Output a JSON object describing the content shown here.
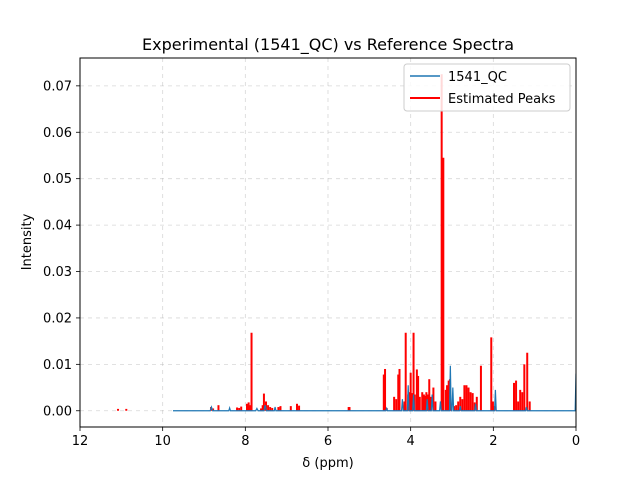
{
  "chart_data": {
    "type": "line",
    "title": "Experimental (1541_QC) vs Reference Spectra",
    "xlabel": "δ (ppm)",
    "ylabel": "Intensity",
    "xlim": [
      12,
      0
    ],
    "ylim": [
      -0.0035,
      0.076
    ],
    "x_inverted": true,
    "grid": true,
    "legend": "top-right",
    "x_ticks": [
      {
        "value": 12,
        "label": "12"
      },
      {
        "value": 10,
        "label": "10"
      },
      {
        "value": 8,
        "label": "8"
      },
      {
        "value": 6,
        "label": "6"
      },
      {
        "value": 4,
        "label": "4"
      },
      {
        "value": 2,
        "label": "2"
      },
      {
        "value": 0,
        "label": "0"
      }
    ],
    "y_ticks": [
      {
        "value": 0.0,
        "label": "0.00"
      },
      {
        "value": 0.01,
        "label": "0.01"
      },
      {
        "value": 0.02,
        "label": "0.02"
      },
      {
        "value": 0.03,
        "label": "0.03"
      },
      {
        "value": 0.04,
        "label": "0.04"
      },
      {
        "value": 0.05,
        "label": "0.05"
      },
      {
        "value": 0.06,
        "label": "0.06"
      },
      {
        "value": 0.07,
        "label": "0.07"
      }
    ],
    "series": [
      {
        "name": "1541_QC",
        "kind": "line",
        "color": "#1f77b4",
        "points": [
          [
            9.75,
            0.0
          ],
          [
            8.85,
            0.0
          ],
          [
            8.82,
            0.0008
          ],
          [
            8.79,
            0.0
          ],
          [
            8.4,
            0.0
          ],
          [
            8.38,
            0.0006
          ],
          [
            8.36,
            0.0
          ],
          [
            7.75,
            0.0
          ],
          [
            7.72,
            0.0005
          ],
          [
            7.69,
            0.0
          ],
          [
            7.55,
            0.0
          ],
          [
            7.52,
            0.0012
          ],
          [
            7.49,
            0.0
          ],
          [
            7.3,
            0.0
          ],
          [
            7.28,
            0.0008
          ],
          [
            7.26,
            0.0
          ],
          [
            4.6,
            0.0
          ],
          [
            4.58,
            0.0005
          ],
          [
            4.56,
            0.0
          ],
          [
            4.22,
            0.0
          ],
          [
            4.2,
            0.0025
          ],
          [
            4.18,
            0.0
          ],
          [
            4.08,
            0.0
          ],
          [
            4.06,
            0.0055
          ],
          [
            4.04,
            0.0
          ],
          [
            3.95,
            0.0
          ],
          [
            3.93,
            0.0035
          ],
          [
            3.91,
            0.0
          ],
          [
            3.62,
            0.0
          ],
          [
            3.6,
            0.0025
          ],
          [
            3.58,
            0.0
          ],
          [
            3.5,
            0.0
          ],
          [
            3.48,
            0.0035
          ],
          [
            3.46,
            0.0
          ],
          [
            3.3,
            0.0
          ],
          [
            3.28,
            0.002
          ],
          [
            3.26,
            0.0
          ],
          [
            3.06,
            0.0
          ],
          [
            3.04,
            0.0097
          ],
          [
            3.02,
            0.0
          ],
          [
            3.0,
            0.0
          ],
          [
            2.98,
            0.005
          ],
          [
            2.96,
            0.0
          ],
          [
            2.82,
            0.0
          ],
          [
            2.8,
            0.001
          ],
          [
            2.78,
            0.0
          ],
          [
            2.45,
            0.0
          ],
          [
            2.43,
            0.0015
          ],
          [
            2.41,
            0.0
          ],
          [
            1.97,
            0.0
          ],
          [
            1.95,
            0.0045
          ],
          [
            1.93,
            0.0
          ],
          [
            1.22,
            0.0
          ],
          [
            1.2,
            0.0008
          ],
          [
            1.18,
            0.0
          ],
          [
            0.02,
            0.0
          ],
          [
            0.0,
            0.008
          ]
        ]
      },
      {
        "name": "Estimated Peaks",
        "kind": "sticks",
        "color": "#ff0000",
        "peaks": [
          [
            11.08,
            0.0004
          ],
          [
            10.88,
            0.0004
          ],
          [
            8.83,
            0.0008
          ],
          [
            8.78,
            0.0005
          ],
          [
            8.65,
            0.0012
          ],
          [
            8.2,
            0.0007
          ],
          [
            8.15,
            0.0006
          ],
          [
            8.1,
            0.0009
          ],
          [
            7.96,
            0.0015
          ],
          [
            7.92,
            0.0018
          ],
          [
            7.88,
            0.0012
          ],
          [
            7.85,
            0.0168
          ],
          [
            7.62,
            0.0005
          ],
          [
            7.58,
            0.0012
          ],
          [
            7.55,
            0.0037
          ],
          [
            7.5,
            0.002
          ],
          [
            7.45,
            0.0012
          ],
          [
            7.4,
            0.0008
          ],
          [
            7.35,
            0.0006
          ],
          [
            7.2,
            0.0008
          ],
          [
            7.15,
            0.001
          ],
          [
            6.9,
            0.001
          ],
          [
            6.75,
            0.0015
          ],
          [
            6.7,
            0.0011
          ],
          [
            5.5,
            0.0008
          ],
          [
            5.48,
            0.0008
          ],
          [
            4.65,
            0.0078
          ],
          [
            4.62,
            0.009
          ],
          [
            4.58,
            0.0006
          ],
          [
            4.4,
            0.003
          ],
          [
            4.35,
            0.0025
          ],
          [
            4.3,
            0.0078
          ],
          [
            4.27,
            0.009
          ],
          [
            4.15,
            0.002
          ],
          [
            4.12,
            0.0168
          ],
          [
            4.06,
            0.0035
          ],
          [
            4.03,
            0.004
          ],
          [
            4.0,
            0.0082
          ],
          [
            3.97,
            0.0038
          ],
          [
            3.93,
            0.0168
          ],
          [
            3.9,
            0.0035
          ],
          [
            3.85,
            0.0089
          ],
          [
            3.82,
            0.0075
          ],
          [
            3.78,
            0.003
          ],
          [
            3.72,
            0.004
          ],
          [
            3.68,
            0.0035
          ],
          [
            3.65,
            0.0032
          ],
          [
            3.62,
            0.004
          ],
          [
            3.58,
            0.0035
          ],
          [
            3.55,
            0.0068
          ],
          [
            3.52,
            0.003
          ],
          [
            3.45,
            0.005
          ],
          [
            3.4,
            0.002
          ],
          [
            3.25,
            0.0725
          ],
          [
            3.21,
            0.0545
          ],
          [
            3.15,
            0.0045
          ],
          [
            3.12,
            0.0055
          ],
          [
            3.08,
            0.0065
          ],
          [
            3.05,
            0.0068
          ],
          [
            2.95,
            0.001
          ],
          [
            2.9,
            0.0012
          ],
          [
            2.85,
            0.002
          ],
          [
            2.8,
            0.003
          ],
          [
            2.75,
            0.0025
          ],
          [
            2.7,
            0.0055
          ],
          [
            2.65,
            0.0055
          ],
          [
            2.6,
            0.005
          ],
          [
            2.55,
            0.004
          ],
          [
            2.5,
            0.0038
          ],
          [
            2.45,
            0.0018
          ],
          [
            2.4,
            0.003
          ],
          [
            2.3,
            0.0097
          ],
          [
            2.05,
            0.0158
          ],
          [
            2.01,
            0.002
          ],
          [
            1.97,
            0.001
          ],
          [
            1.5,
            0.006
          ],
          [
            1.45,
            0.0065
          ],
          [
            1.4,
            0.002
          ],
          [
            1.35,
            0.0045
          ],
          [
            1.3,
            0.004
          ],
          [
            1.25,
            0.01
          ],
          [
            1.18,
            0.0125
          ],
          [
            1.12,
            0.002
          ]
        ]
      }
    ]
  }
}
